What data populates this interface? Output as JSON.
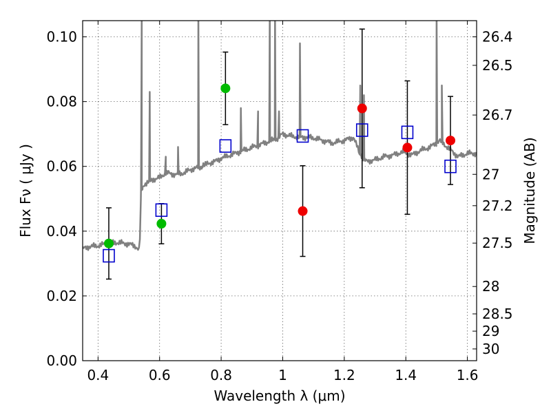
{
  "chart_data": {
    "type": "scatter",
    "xlabel": "Wavelength  λ (μm)",
    "ylabel": "Flux  Fν  ( μJy )",
    "y2label": "Magnitude (AB)",
    "xlim": [
      0.35,
      1.63
    ],
    "ylim": [
      0.0,
      0.105
    ],
    "grid": true,
    "x_ticks": [
      {
        "value": 0.4,
        "label": "0.4"
      },
      {
        "value": 0.6,
        "label": "0.6"
      },
      {
        "value": 0.8,
        "label": "0.8"
      },
      {
        "value": 1.0,
        "label": "1"
      },
      {
        "value": 1.2,
        "label": "1.2"
      },
      {
        "value": 1.4,
        "label": "1.4"
      },
      {
        "value": 1.6,
        "label": "1.6"
      }
    ],
    "y_ticks": [
      {
        "value": 0.0,
        "label": "0.00"
      },
      {
        "value": 0.02,
        "label": "0.02"
      },
      {
        "value": 0.04,
        "label": "0.04"
      },
      {
        "value": 0.06,
        "label": "0.06"
      },
      {
        "value": 0.08,
        "label": "0.08"
      },
      {
        "value": 0.1,
        "label": "0.10"
      }
    ],
    "y2_ticks": [
      {
        "mag": 26.4,
        "label": "26.4"
      },
      {
        "mag": 26.5,
        "label": "26.5"
      },
      {
        "mag": 26.7,
        "label": "26.7"
      },
      {
        "mag": 27,
        "label": "27"
      },
      {
        "mag": 27.2,
        "label": "27.2"
      },
      {
        "mag": 27.5,
        "label": "27.5"
      },
      {
        "mag": 28,
        "label": "28"
      },
      {
        "mag": 28.5,
        "label": "28.5"
      },
      {
        "mag": 29,
        "label": "29"
      },
      {
        "mag": 30,
        "label": "30"
      }
    ],
    "colors": {
      "model": "#808080",
      "green": "#00bb00",
      "red": "#ee0000",
      "model_box": "#0000cc",
      "errorbar": "#000000"
    },
    "observed": [
      {
        "x": 0.435,
        "y": 0.0362,
        "err": 0.011,
        "color": "green"
      },
      {
        "x": 0.606,
        "y": 0.0423,
        "err": 0.0062,
        "color": "green"
      },
      {
        "x": 0.814,
        "y": 0.0841,
        "err": 0.0112,
        "color": "green"
      },
      {
        "x": 1.065,
        "y": 0.0462,
        "err": 0.014,
        "color": "red"
      },
      {
        "x": 1.258,
        "y": 0.0779,
        "err": 0.0245,
        "color": "red"
      },
      {
        "x": 1.405,
        "y": 0.0658,
        "err": 0.0206,
        "color": "red"
      },
      {
        "x": 1.545,
        "y": 0.068,
        "err": 0.0136,
        "color": "red"
      }
    ],
    "model_photometry": [
      {
        "x": 0.435,
        "y": 0.0324
      },
      {
        "x": 0.606,
        "y": 0.0465
      },
      {
        "x": 0.814,
        "y": 0.0663
      },
      {
        "x": 1.065,
        "y": 0.0694
      },
      {
        "x": 1.258,
        "y": 0.0712
      },
      {
        "x": 1.405,
        "y": 0.0705
      },
      {
        "x": 1.545,
        "y": 0.06
      }
    ],
    "model_spectrum": {
      "x": [
        0.35,
        0.37,
        0.4,
        0.43,
        0.46,
        0.49,
        0.52,
        0.535,
        0.54,
        0.55,
        0.58,
        0.6,
        0.62,
        0.65,
        0.68,
        0.7,
        0.72,
        0.74,
        0.76,
        0.78,
        0.8,
        0.83,
        0.86,
        0.89,
        0.92,
        0.95,
        0.98,
        1.0,
        1.02,
        1.05,
        1.08,
        1.1,
        1.13,
        1.16,
        1.2,
        1.23,
        1.25,
        1.27,
        1.3,
        1.33,
        1.36,
        1.39,
        1.42,
        1.45,
        1.48,
        1.51,
        1.54,
        1.57,
        1.6,
        1.63
      ],
      "y": [
        0.0345,
        0.0352,
        0.0355,
        0.0362,
        0.0365,
        0.0362,
        0.0355,
        0.034,
        0.0525,
        0.0545,
        0.056,
        0.0565,
        0.058,
        0.0575,
        0.058,
        0.059,
        0.0595,
        0.06,
        0.061,
        0.0615,
        0.0625,
        0.0635,
        0.0645,
        0.0655,
        0.0665,
        0.0675,
        0.0685,
        0.07,
        0.0695,
        0.069,
        0.069,
        0.0688,
        0.068,
        0.0672,
        0.068,
        0.069,
        0.064,
        0.0615,
        0.062,
        0.063,
        0.0635,
        0.0645,
        0.0635,
        0.065,
        0.066,
        0.068,
        0.0655,
        0.063,
        0.064,
        0.064
      ],
      "lines": [
        {
          "x": 0.542,
          "peak": 0.108
        },
        {
          "x": 0.568,
          "peak": 0.083
        },
        {
          "x": 0.62,
          "peak": 0.063
        },
        {
          "x": 0.66,
          "peak": 0.066
        },
        {
          "x": 0.726,
          "peak": 0.108
        },
        {
          "x": 0.742,
          "peak": 0.061
        },
        {
          "x": 0.864,
          "peak": 0.078
        },
        {
          "x": 0.92,
          "peak": 0.077
        },
        {
          "x": 0.958,
          "peak": 0.108
        },
        {
          "x": 0.975,
          "peak": 0.108
        },
        {
          "x": 0.988,
          "peak": 0.077
        },
        {
          "x": 1.056,
          "peak": 0.098
        },
        {
          "x": 1.252,
          "peak": 0.085
        },
        {
          "x": 1.264,
          "peak": 0.082
        },
        {
          "x": 1.5,
          "peak": 0.108
        },
        {
          "x": 1.517,
          "peak": 0.085
        }
      ]
    }
  }
}
